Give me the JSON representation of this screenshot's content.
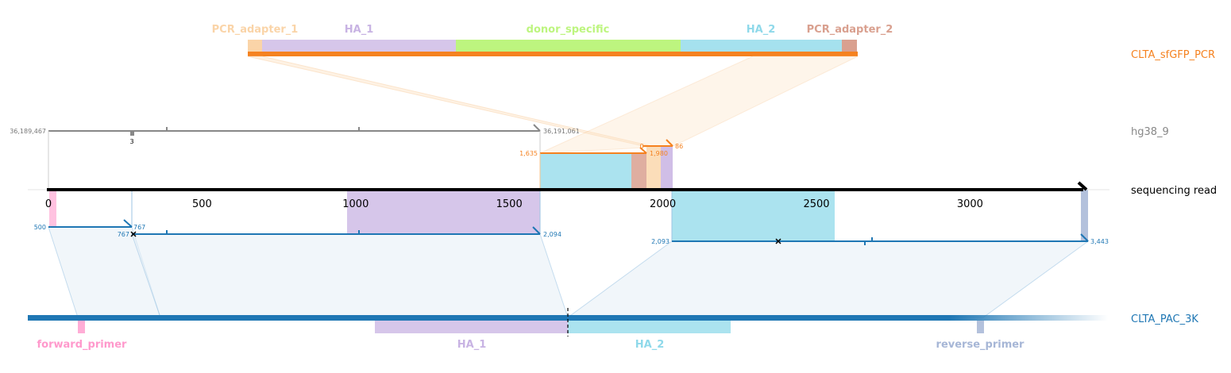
{
  "colors": {
    "orange": "#f58220",
    "gray": "#888888",
    "blue": "#1f77b4",
    "pink": "#ff99cc",
    "purple": "#c8b3e3",
    "cyan": "#8fd9ea",
    "green": "#bdf57f",
    "peach": "#fad4a8",
    "salmon": "#d9a08f",
    "slate": "#a6b6d6"
  },
  "tracks": {
    "pcr": "CLTA_sfGFP_PCR",
    "genome": "hg38_9",
    "read": "sequencing read",
    "plasmid": "CLTA_PAC_3K"
  },
  "pcr_features": [
    "PCR_adapter_1",
    "HA_1",
    "donor_specific",
    "HA_2",
    "PCR_adapter_2"
  ],
  "plasmid_features": [
    "forward_primer",
    "HA_1",
    "HA_2",
    "reverse_primer"
  ],
  "read_axis": {
    "ticks": [
      0,
      500,
      1000,
      1500,
      2000,
      2500,
      3000
    ],
    "max": 3380
  },
  "genome_labels": {
    "start": "36,189,467",
    "end": "36,191,061",
    "marker": "3"
  },
  "pcr_alignment_labels": {
    "start": "1,635",
    "end": "1,980",
    "a": "0",
    "b": "86"
  },
  "plasmid_alignment_labels": {
    "a1_start": "500",
    "a1_end": "767",
    "a2_start": "767",
    "a2_end": "2,094",
    "a3_start": "2,093",
    "a3_end": "3,443"
  }
}
